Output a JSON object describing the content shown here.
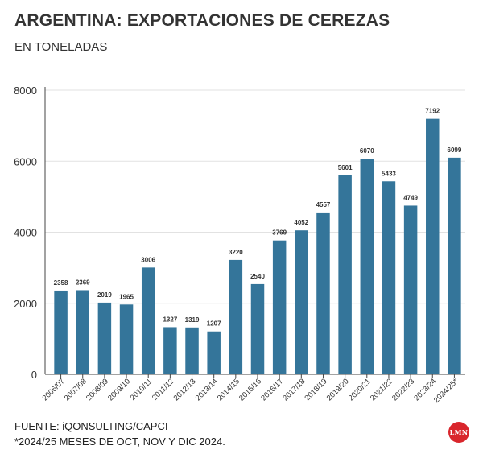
{
  "title": "ARGENTINA: EXPORTACIONES DE CEREZAS",
  "subtitle": "EN TONELADAS",
  "source": "FUENTE: iQONSULTING/CAPCI",
  "note": "*2024/25 MESES DE OCT, NOV Y DIC 2024.",
  "logo_text": "LMN",
  "colors": {
    "bar": "#34759a",
    "grid": "#e2e2e2",
    "axis": "#444444",
    "label": "#333333",
    "logo": "#d9262c"
  },
  "chart_data": {
    "type": "bar",
    "categories": [
      "2006/07",
      "2007/08",
      "2008/09",
      "2009/10",
      "2010/11",
      "2011/12",
      "2012/13",
      "2013/14",
      "2014/15",
      "2015/16",
      "2016/17",
      "2017/18",
      "2018/19",
      "2019/20",
      "2020/21",
      "2021/22",
      "2022/23",
      "2023/24",
      "2024/25*"
    ],
    "values": [
      2358,
      2369,
      2019,
      1965,
      3006,
      1327,
      1319,
      1207,
      3220,
      2540,
      3769,
      4052,
      4557,
      5601,
      6070,
      5433,
      4749,
      7192,
      6099
    ],
    "title": "ARGENTINA: EXPORTACIONES DE CEREZAS",
    "subtitle": "EN TONELADAS",
    "ylim": [
      0,
      8000
    ],
    "yticks": [
      0,
      2000,
      4000,
      6000,
      8000
    ],
    "grid": true,
    "data_labels": true
  }
}
